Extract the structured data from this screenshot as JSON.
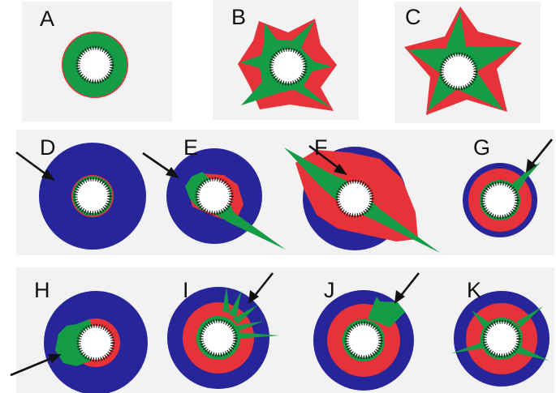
{
  "colors": {
    "red": "#e8323a",
    "green": "#149c46",
    "blue": "#27259a",
    "bg": "#f2f2f2",
    "white": "#ffffff",
    "arrow": "#111111"
  },
  "panels": [
    {
      "label": "A"
    },
    {
      "label": "B"
    },
    {
      "label": "C"
    },
    {
      "label": "D"
    },
    {
      "label": "E"
    },
    {
      "label": "F"
    },
    {
      "label": "G"
    },
    {
      "label": "H"
    },
    {
      "label": "I"
    },
    {
      "label": "J"
    },
    {
      "label": "K"
    }
  ]
}
